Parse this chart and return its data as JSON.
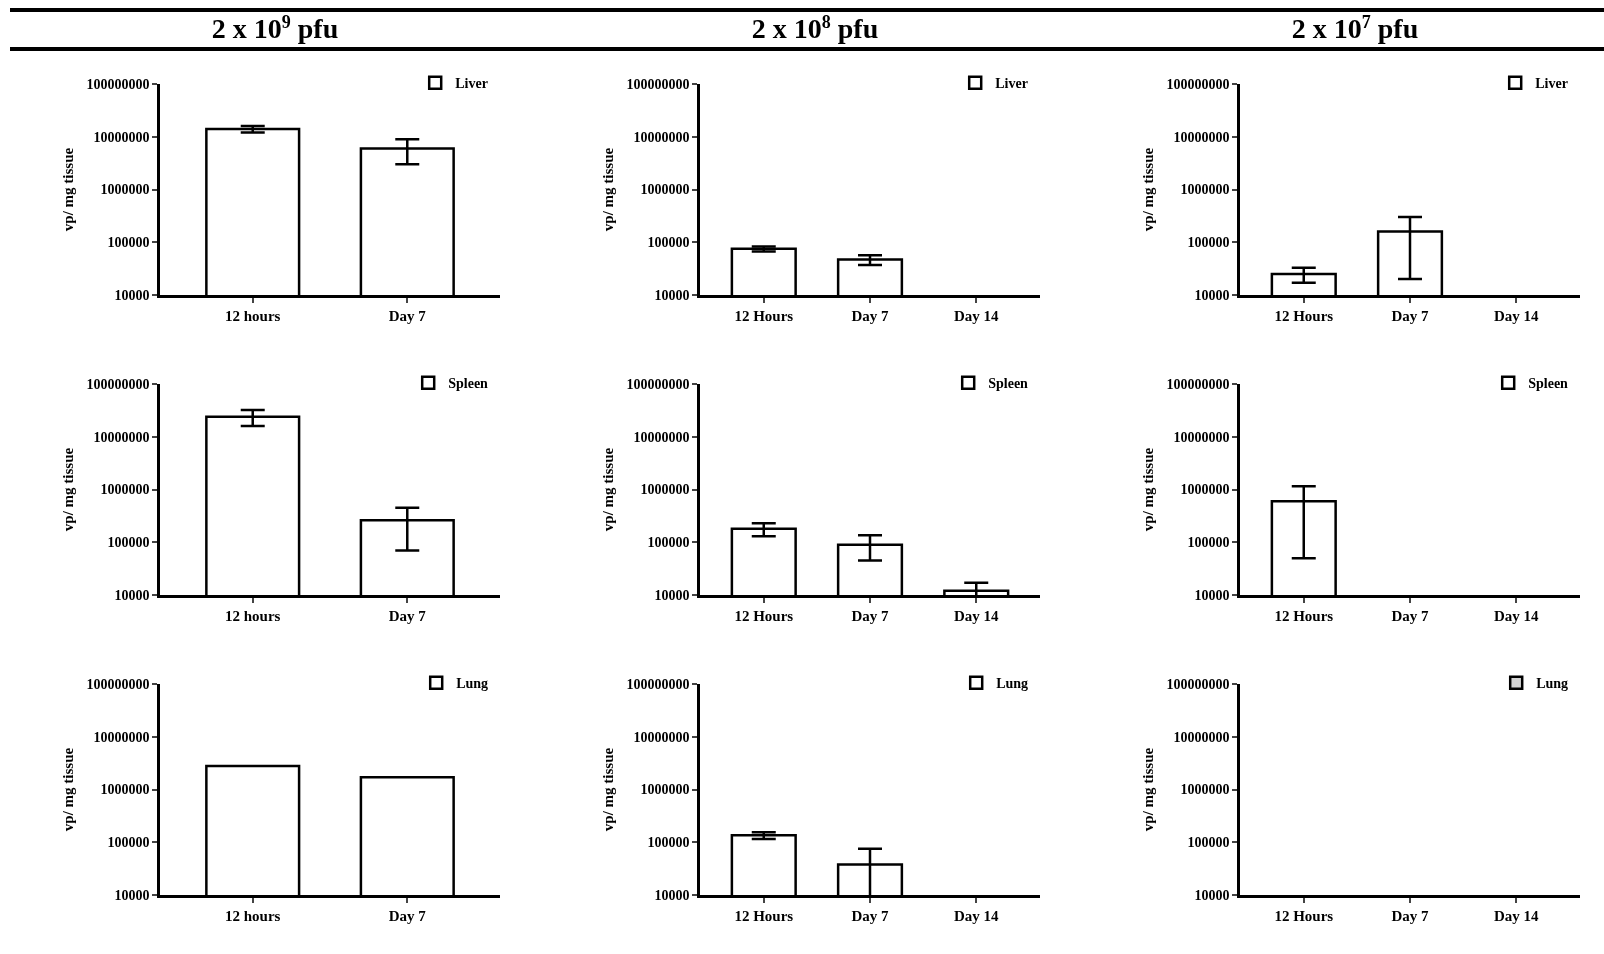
{
  "chart_data": [
    {
      "type": "bar",
      "title": "2 x 10$^{9}$ pfu",
      "ylabel": "vp/ mg tissue",
      "categories": [
        "12 hours",
        "Day 7"
      ],
      "series": [
        {
          "name": "Liver",
          "color": "#ffffff",
          "values": [
            14000000,
            6000000
          ],
          "errors": [
            2000000,
            3000000
          ]
        }
      ],
      "log": "y",
      "ylim": [
        10000,
        100000000
      ],
      "yticks": [
        10000,
        100000,
        1000000,
        10000000,
        100000000
      ],
      "grid": false,
      "legend": "top right"
    },
    {
      "type": "bar",
      "title": "2 x 10$^{8}$ pfu",
      "ylabel": "vp/ mg tissue",
      "categories": [
        "12 Hours",
        "Day 7",
        "Day 14"
      ],
      "series": [
        {
          "name": "Liver",
          "color": "#ffffff",
          "values": [
            75000,
            47000,
            null
          ],
          "errors": [
            8000,
            10000,
            null
          ]
        }
      ],
      "log": "y",
      "ylim": [
        10000,
        100000000
      ],
      "yticks": [
        10000,
        100000,
        1000000,
        10000000,
        100000000
      ],
      "grid": false,
      "legend": "top right"
    },
    {
      "type": "bar",
      "title": "2 x 10$^{7}$ pfu",
      "ylabel": "vp/ mg tissue",
      "categories": [
        "12 Hours",
        "Day 7",
        "Day 14"
      ],
      "series": [
        {
          "name": "Liver",
          "color": "#ffffff",
          "values": [
            25000,
            160000,
            null
          ],
          "errors": [
            8000,
            140000,
            null
          ]
        }
      ],
      "log": "y",
      "ylim": [
        10000,
        100000000
      ],
      "yticks": [
        10000,
        100000,
        1000000,
        10000000,
        100000000
      ],
      "grid": false,
      "legend": "top right"
    },
    {
      "type": "bar",
      "ylabel": "vp/ mg tissue",
      "categories": [
        "12 hours",
        "Day 7"
      ],
      "series": [
        {
          "name": "Spleen",
          "color": "#ffffff",
          "values": [
            24000000,
            260000
          ],
          "errors": [
            8000000,
            190000
          ]
        }
      ],
      "log": "y",
      "ylim": [
        10000,
        100000000
      ],
      "yticks": [
        10000,
        100000,
        1000000,
        10000000,
        100000000
      ],
      "grid": false,
      "legend": "top right"
    },
    {
      "type": "bar",
      "ylabel": "vp/ mg tissue",
      "categories": [
        "12 Hours",
        "Day 7",
        "Day 14"
      ],
      "series": [
        {
          "name": "Spleen",
          "color": "#ffffff",
          "values": [
            180000,
            90000,
            12000
          ],
          "errors": [
            50000,
            45000,
            5000
          ]
        }
      ],
      "log": "y",
      "ylim": [
        10000,
        100000000
      ],
      "yticks": [
        10000,
        100000,
        1000000,
        10000000,
        100000000
      ],
      "grid": false,
      "legend": "top right"
    },
    {
      "type": "bar",
      "ylabel": "vp/ mg tissue",
      "categories": [
        "12 Hours",
        "Day 7",
        "Day 14"
      ],
      "series": [
        {
          "name": "Spleen",
          "color": "#ffffff",
          "values": [
            600000,
            null,
            null
          ],
          "errors": [
            550000,
            null,
            null
          ]
        }
      ],
      "log": "y",
      "ylim": [
        10000,
        100000000
      ],
      "yticks": [
        10000,
        100000,
        1000000,
        10000000,
        100000000
      ],
      "grid": false,
      "legend": "top right"
    },
    {
      "type": "bar",
      "ylabel": "vp/ mg tissue",
      "categories": [
        "12 hours",
        "Day 7"
      ],
      "series": [
        {
          "name": "Lung",
          "color": "#ffffff",
          "values": [
            2800000,
            1700000
          ]
        }
      ],
      "log": "y",
      "ylim": [
        10000,
        100000000
      ],
      "yticks": [
        10000,
        100000,
        1000000,
        10000000,
        100000000
      ],
      "grid": false,
      "legend": "top right"
    },
    {
      "type": "bar",
      "ylabel": "vp/ mg tissue",
      "categories": [
        "12 Hours",
        "Day 7",
        "Day 14"
      ],
      "series": [
        {
          "name": "Lung",
          "color": "#ffffff",
          "values": [
            135000,
            38000,
            null
          ],
          "errors": [
            20000,
            37000,
            null
          ]
        }
      ],
      "log": "y",
      "ylim": [
        10000,
        100000000
      ],
      "yticks": [
        10000,
        100000,
        1000000,
        10000000,
        100000000
      ],
      "grid": false,
      "legend": "top right"
    },
    {
      "type": "bar",
      "ylabel": "vp/ mg tissue",
      "categories": [
        "12 Hours",
        "Day 7",
        "Day 14"
      ],
      "series": [
        {
          "name": "Lung",
          "color": "#d3d3d3",
          "values": [
            null,
            null,
            null
          ]
        }
      ],
      "log": "y",
      "ylim": [
        10000,
        100000000
      ],
      "yticks": [
        10000,
        100000,
        1000000,
        10000000,
        100000000
      ],
      "grid": false,
      "legend": "top right"
    }
  ]
}
